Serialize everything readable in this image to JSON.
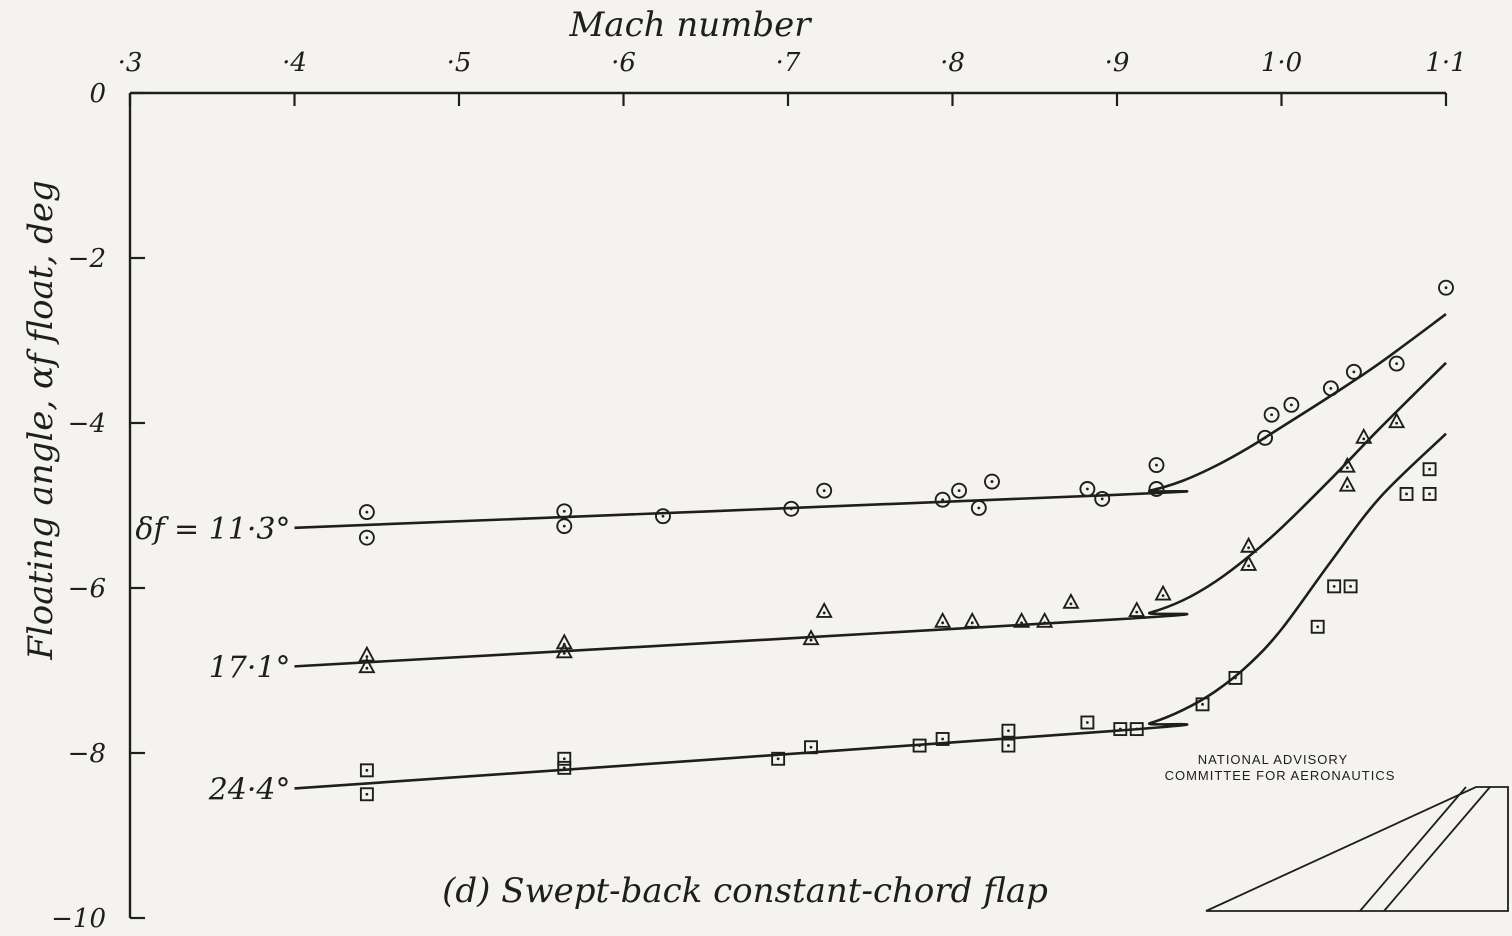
{
  "chart_data": {
    "type": "scatter",
    "title": "",
    "caption": "(d) Swept-back constant-chord flap",
    "credit": [
      "NATIONAL ADVISORY",
      "COMMITTEE FOR AERONAUTICS"
    ],
    "xlabel": "Mach number",
    "ylabel": "Floating angle, αf float, deg",
    "xlim": [
      0.3,
      1.1
    ],
    "ylim": [
      -10,
      0
    ],
    "x_ticks": [
      0.3,
      0.4,
      0.5,
      0.6,
      0.7,
      0.8,
      0.9,
      1.0,
      1.1
    ],
    "x_tick_labels": [
      "·3",
      "·4",
      "·5",
      "·6",
      "·7",
      "·8",
      "·9",
      "1·0",
      "1·1"
    ],
    "y_ticks": [
      0,
      -2,
      -4,
      -6,
      -8,
      -10
    ],
    "y_tick_labels": [
      "0",
      "−2",
      "−4",
      "−6",
      "−8",
      "−10"
    ],
    "x_axis_position": "top",
    "grid": false,
    "colors": {
      "ink": "#1e1e1e",
      "paper": "#f4f3ef"
    },
    "series": [
      {
        "name": "δf = 11·3°",
        "marker": "circle",
        "points": [
          [
            0.444,
            -5.08
          ],
          [
            0.444,
            -5.39
          ],
          [
            0.564,
            -5.07
          ],
          [
            0.564,
            -5.25
          ],
          [
            0.624,
            -5.13
          ],
          [
            0.702,
            -5.04
          ],
          [
            0.722,
            -4.82
          ],
          [
            0.794,
            -4.93
          ],
          [
            0.804,
            -4.82
          ],
          [
            0.816,
            -5.03
          ],
          [
            0.824,
            -4.71
          ],
          [
            0.882,
            -4.8
          ],
          [
            0.891,
            -4.92
          ],
          [
            0.924,
            -4.8
          ],
          [
            0.924,
            -4.51
          ],
          [
            0.99,
            -4.18
          ],
          [
            0.994,
            -3.9
          ],
          [
            1.006,
            -3.78
          ],
          [
            1.03,
            -3.58
          ],
          [
            1.044,
            -3.38
          ],
          [
            1.07,
            -3.28
          ],
          [
            1.1,
            -2.36
          ]
        ],
        "fit": [
          [
            0.4,
            -5.27
          ],
          [
            0.9,
            -4.87
          ],
          [
            0.92,
            -4.82
          ],
          [
            0.94,
            -4.7
          ],
          [
            0.96,
            -4.52
          ],
          [
            0.98,
            -4.3
          ],
          [
            1.0,
            -4.05
          ],
          [
            1.03,
            -3.67
          ],
          [
            1.06,
            -3.27
          ],
          [
            1.1,
            -2.68
          ]
        ]
      },
      {
        "name": "17·1°",
        "marker": "triangle",
        "points": [
          [
            0.444,
            -6.82
          ],
          [
            0.444,
            -6.96
          ],
          [
            0.564,
            -6.67
          ],
          [
            0.564,
            -6.78
          ],
          [
            0.714,
            -6.62
          ],
          [
            0.722,
            -6.29
          ],
          [
            0.794,
            -6.41
          ],
          [
            0.812,
            -6.41
          ],
          [
            0.842,
            -6.41
          ],
          [
            0.856,
            -6.41
          ],
          [
            0.872,
            -6.18
          ],
          [
            0.912,
            -6.28
          ],
          [
            0.928,
            -6.08
          ],
          [
            0.98,
            -5.5
          ],
          [
            0.98,
            -5.72
          ],
          [
            1.04,
            -4.53
          ],
          [
            1.04,
            -4.76
          ],
          [
            1.05,
            -4.18
          ],
          [
            1.07,
            -3.99
          ]
        ],
        "fit": [
          [
            0.4,
            -6.95
          ],
          [
            0.9,
            -6.38
          ],
          [
            0.92,
            -6.3
          ],
          [
            0.94,
            -6.15
          ],
          [
            0.96,
            -5.92
          ],
          [
            0.98,
            -5.62
          ],
          [
            1.0,
            -5.27
          ],
          [
            1.03,
            -4.68
          ],
          [
            1.06,
            -4.06
          ],
          [
            1.1,
            -3.27
          ]
        ]
      },
      {
        "name": "24·4°",
        "marker": "square",
        "points": [
          [
            0.444,
            -8.21
          ],
          [
            0.444,
            -8.5
          ],
          [
            0.564,
            -8.07
          ],
          [
            0.564,
            -8.18
          ],
          [
            0.694,
            -8.07
          ],
          [
            0.714,
            -7.93
          ],
          [
            0.78,
            -7.91
          ],
          [
            0.794,
            -7.83
          ],
          [
            0.834,
            -7.73
          ],
          [
            0.834,
            -7.91
          ],
          [
            0.882,
            -7.63
          ],
          [
            0.902,
            -7.71
          ],
          [
            0.912,
            -7.71
          ],
          [
            0.952,
            -7.41
          ],
          [
            0.972,
            -7.09
          ],
          [
            1.022,
            -6.47
          ],
          [
            1.032,
            -5.98
          ],
          [
            1.042,
            -5.98
          ],
          [
            1.076,
            -4.86
          ],
          [
            1.09,
            -4.56
          ],
          [
            1.09,
            -4.86
          ]
        ],
        "fit": [
          [
            0.4,
            -8.43
          ],
          [
            0.9,
            -7.73
          ],
          [
            0.92,
            -7.64
          ],
          [
            0.94,
            -7.48
          ],
          [
            0.96,
            -7.25
          ],
          [
            0.98,
            -6.93
          ],
          [
            1.0,
            -6.5
          ],
          [
            1.03,
            -5.68
          ],
          [
            1.06,
            -4.9
          ],
          [
            1.1,
            -4.13
          ]
        ]
      }
    ]
  }
}
